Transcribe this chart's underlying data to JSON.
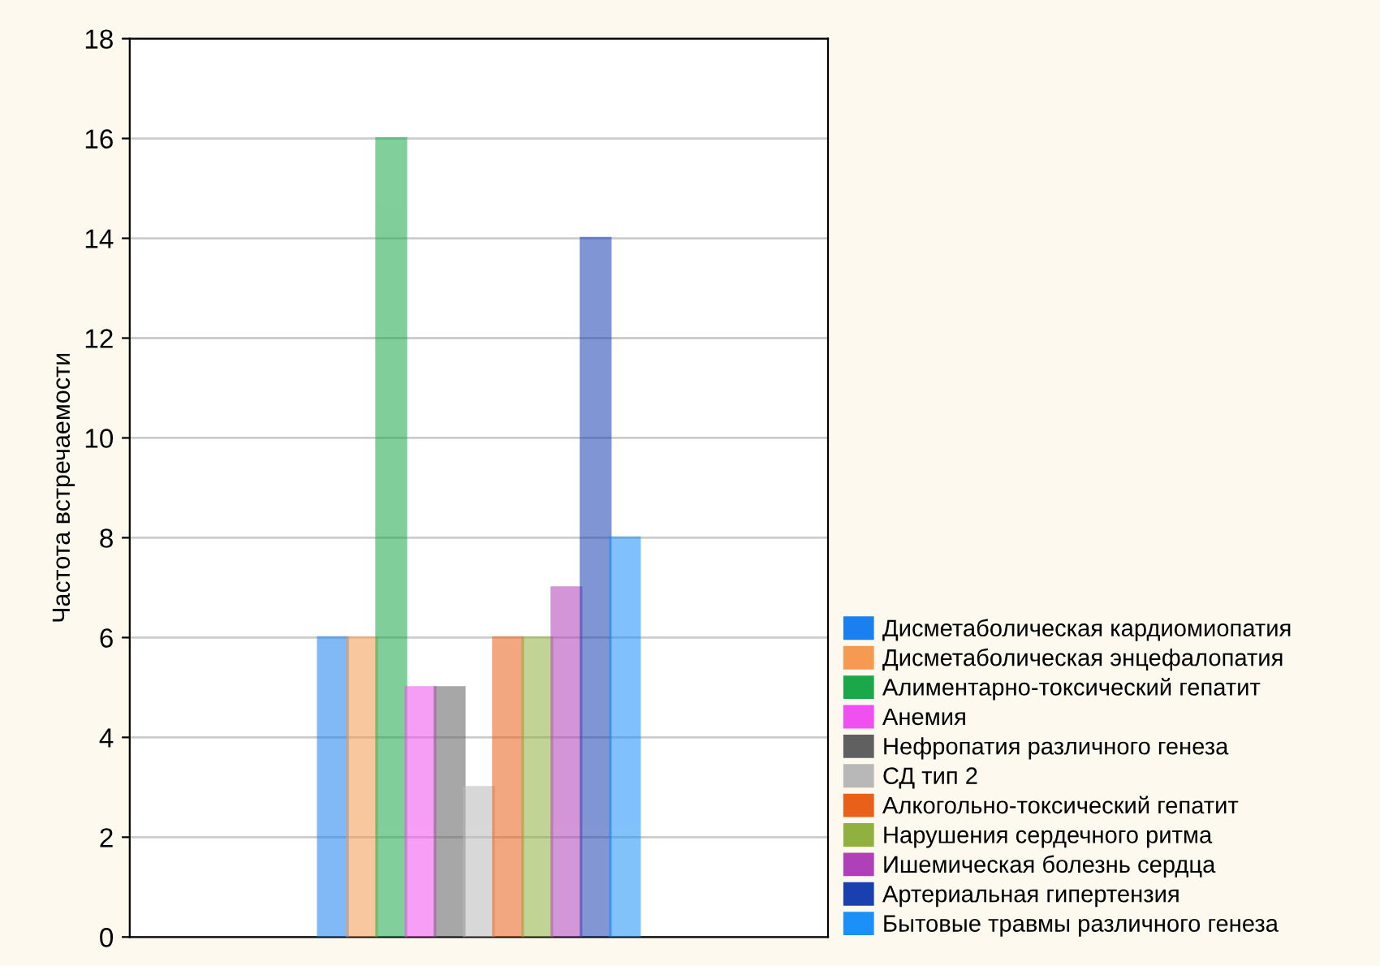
{
  "chart_data": {
    "type": "bar",
    "ylabel": "Частота встречаемости",
    "categories": [
      null
    ],
    "ylim": [
      0,
      18
    ],
    "yticks": [
      0,
      2,
      4,
      6,
      8,
      10,
      12,
      14,
      16,
      18
    ],
    "grid": "y",
    "legend": "bottom right",
    "series": [
      {
        "name": "Дисметаболическая кардиомиопатия",
        "color": "#1a80f0",
        "values": [
          6
        ]
      },
      {
        "name": "Дисметаболическая энцефалопатия",
        "color": "#f59a50",
        "values": [
          6
        ]
      },
      {
        "name": "Алиментарно-токсический гепатит",
        "color": "#1aa84a",
        "values": [
          16
        ]
      },
      {
        "name": "Анемия",
        "color": "#f050f0",
        "values": [
          5
        ]
      },
      {
        "name": "Нефропатия различного генеза",
        "color": "#606060",
        "values": [
          5
        ]
      },
      {
        "name": "СД тип 2",
        "color": "#b8b8b8",
        "values": [
          3
        ]
      },
      {
        "name": "Алкогольно-токсический гепатит",
        "color": "#e8601a",
        "values": [
          6
        ]
      },
      {
        "name": "Нарушения сердечного ритма",
        "color": "#90b040",
        "values": [
          6
        ]
      },
      {
        "name": "Ишемическая болезнь сердца",
        "color": "#b040b8",
        "values": [
          7
        ]
      },
      {
        "name": "Артериальная гипертензия",
        "color": "#1a40b0",
        "values": [
          14
        ]
      },
      {
        "name": "Бытовые травмы различного генеза",
        "color": "#1a90f8",
        "values": [
          8
        ]
      }
    ]
  }
}
